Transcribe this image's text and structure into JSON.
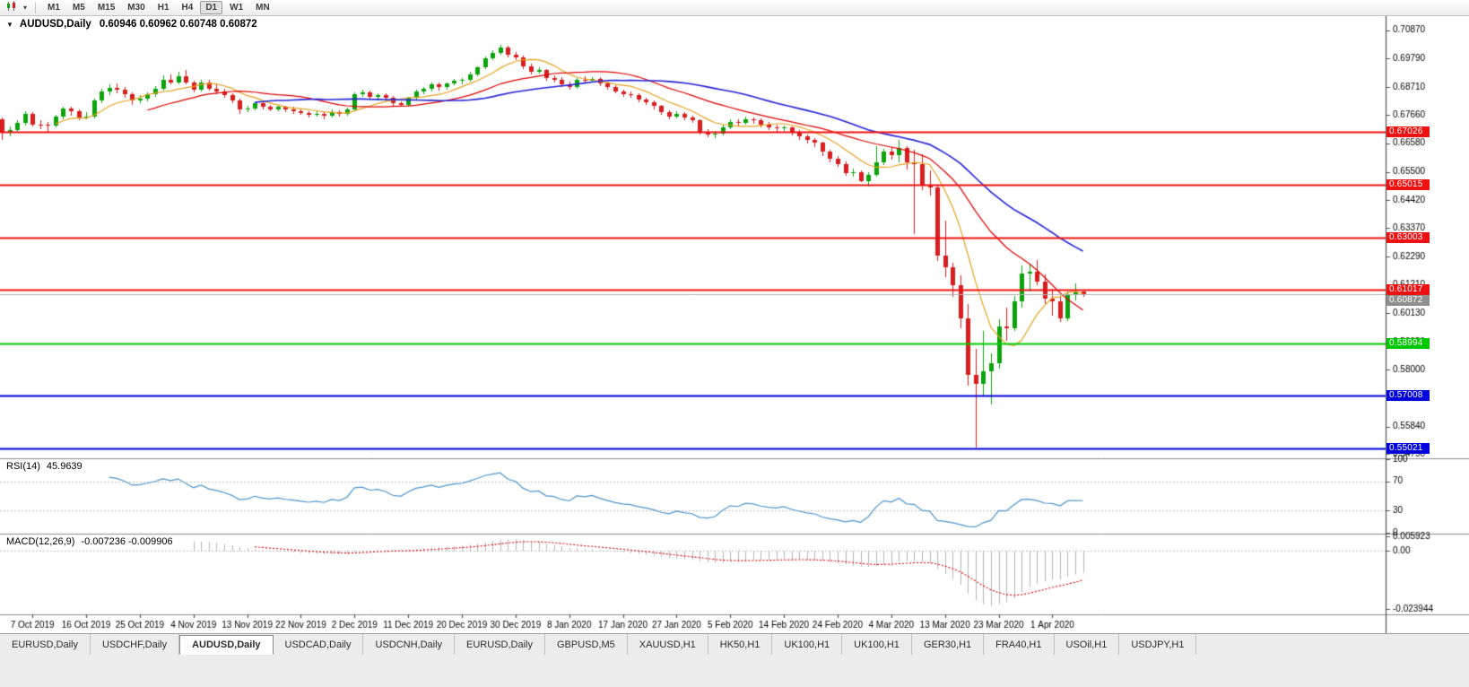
{
  "toolbar": {
    "timeframes": [
      "M1",
      "M5",
      "M15",
      "M30",
      "H1",
      "H4",
      "D1",
      "W1",
      "MN"
    ],
    "active_timeframe": "D1"
  },
  "chart_data": {
    "type": "candlestick",
    "title": "AUDUSD,Daily",
    "ohlc_text": "0.60946 0.60962 0.60748 0.60872",
    "last_ohlc": {
      "open": 0.60946,
      "high": 0.60962,
      "low": 0.60748,
      "close": 0.60872
    },
    "y_axis": {
      "max": 0.714,
      "min": 0.5467
    },
    "y_ticks": [
      "0.70870",
      "0.69790",
      "0.68710",
      "0.67660",
      "0.66580",
      "0.65500",
      "0.64420",
      "0.63370",
      "0.62290",
      "0.61210",
      "0.60130",
      "0.59050",
      "0.58000",
      "0.56920",
      "0.55840",
      "0.54790"
    ],
    "x_labels": [
      {
        "bar": 4,
        "text": "7 Oct 2019"
      },
      {
        "bar": 11,
        "text": "16 Oct 2019"
      },
      {
        "bar": 18,
        "text": "25 Oct 2019"
      },
      {
        "bar": 25,
        "text": "4 Nov 2019"
      },
      {
        "bar": 32,
        "text": "13 Nov 2019"
      },
      {
        "bar": 39,
        "text": "22 Nov 2019"
      },
      {
        "bar": 46,
        "text": "2 Dec 2019"
      },
      {
        "bar": 53,
        "text": "11 Dec 2019"
      },
      {
        "bar": 60,
        "text": "20 Dec 2019"
      },
      {
        "bar": 67,
        "text": "30 Dec 2019"
      },
      {
        "bar": 74,
        "text": "8 Jan 2020"
      },
      {
        "bar": 81,
        "text": "17 Jan 2020"
      },
      {
        "bar": 88,
        "text": "27 Jan 2020"
      },
      {
        "bar": 95,
        "text": "5 Feb 2020"
      },
      {
        "bar": 102,
        "text": "14 Feb 2020"
      },
      {
        "bar": 109,
        "text": "24 Feb 2020"
      },
      {
        "bar": 116,
        "text": "4 Mar 2020"
      },
      {
        "bar": 123,
        "text": "13 Mar 2020"
      },
      {
        "bar": 130,
        "text": "23 Mar 2020"
      },
      {
        "bar": 137,
        "text": "1 Apr 2020"
      }
    ],
    "colors": {
      "bull": "#0ca30c",
      "bear": "#d81e1e",
      "bid_line": "#b0b0b0",
      "bid_badge": "#8f8f8f"
    },
    "moving_averages": [
      {
        "period": 8,
        "color": "#e8a222"
      },
      {
        "period": 20,
        "color": "#e00000"
      },
      {
        "period": 34,
        "color": "#2222d8"
      }
    ],
    "levels": [
      {
        "price": 0.67026,
        "label": "0.67026",
        "color": "#ee1111"
      },
      {
        "price": 0.65015,
        "label": "0.65015",
        "color": "#ee1111"
      },
      {
        "price": 0.63003,
        "label": "0.63003",
        "color": "#ee1111"
      },
      {
        "price": 0.61017,
        "label": "0.61017",
        "color": "#ee1111"
      },
      {
        "price": 0.58994,
        "label": "0.58994",
        "color": "#00c800"
      },
      {
        "price": 0.57008,
        "label": "0.57008",
        "color": "#0000dd"
      },
      {
        "price": 0.55021,
        "label": "0.55021",
        "color": "#0000dd"
      }
    ],
    "bid": {
      "price": 0.60872,
      "label": "0.60872"
    },
    "rsi": {
      "name": "RSI(14)",
      "value": "45.9639",
      "period": 14,
      "color": "#4f94cd",
      "scale": [
        "100",
        "70",
        "30",
        "0"
      ],
      "guides": [
        70,
        30
      ]
    },
    "macd": {
      "name": "MACD(12,26,9)",
      "values": "-0.007236 -0.009906",
      "fast": 12,
      "slow": 26,
      "signal": 9,
      "hist_color": "#b5b5b5",
      "signal_color": "#e00000",
      "range": {
        "max": 0.0068,
        "min": -0.0258
      },
      "scale": [
        {
          "v": 0.005923,
          "label": "0.005923"
        },
        {
          "v": 0,
          "label": "0.00"
        },
        {
          "v": -0.023944,
          "label": "-0.023944"
        }
      ]
    },
    "candles": [
      [
        0.6749,
        0.6755,
        0.667,
        0.67
      ],
      [
        0.67,
        0.6722,
        0.6685,
        0.6707
      ],
      [
        0.6707,
        0.6745,
        0.67,
        0.6736
      ],
      [
        0.6736,
        0.678,
        0.6725,
        0.677
      ],
      [
        0.677,
        0.6775,
        0.6722,
        0.673
      ],
      [
        0.673,
        0.6745,
        0.671,
        0.6727
      ],
      [
        0.6727,
        0.6738,
        0.67,
        0.6725
      ],
      [
        0.6725,
        0.6765,
        0.6718,
        0.6758
      ],
      [
        0.6758,
        0.6795,
        0.675,
        0.679
      ],
      [
        0.679,
        0.6795,
        0.6762,
        0.678
      ],
      [
        0.678,
        0.6785,
        0.6745,
        0.6755
      ],
      [
        0.6755,
        0.6775,
        0.6748,
        0.6758
      ],
      [
        0.6758,
        0.6828,
        0.6752,
        0.6822
      ],
      [
        0.6822,
        0.6865,
        0.681,
        0.6855
      ],
      [
        0.6855,
        0.688,
        0.684,
        0.6867
      ],
      [
        0.6867,
        0.6885,
        0.6848,
        0.686
      ],
      [
        0.686,
        0.6872,
        0.683,
        0.6845
      ],
      [
        0.6845,
        0.685,
        0.6805,
        0.6821
      ],
      [
        0.6821,
        0.684,
        0.681,
        0.6827
      ],
      [
        0.6827,
        0.685,
        0.6818,
        0.6843
      ],
      [
        0.6843,
        0.6875,
        0.6835,
        0.6865
      ],
      [
        0.6865,
        0.6915,
        0.6858,
        0.69
      ],
      [
        0.69,
        0.692,
        0.688,
        0.689
      ],
      [
        0.689,
        0.693,
        0.6882,
        0.6913
      ],
      [
        0.6913,
        0.6935,
        0.688,
        0.6888
      ],
      [
        0.6888,
        0.6895,
        0.685,
        0.6862
      ],
      [
        0.6862,
        0.69,
        0.6855,
        0.689
      ],
      [
        0.689,
        0.6898,
        0.6858,
        0.6866
      ],
      [
        0.6866,
        0.688,
        0.6845,
        0.6855
      ],
      [
        0.6855,
        0.6865,
        0.683,
        0.684
      ],
      [
        0.684,
        0.6848,
        0.681,
        0.682
      ],
      [
        0.682,
        0.6826,
        0.677,
        0.6785
      ],
      [
        0.6785,
        0.68,
        0.6775,
        0.679
      ],
      [
        0.679,
        0.6815,
        0.6782,
        0.681
      ],
      [
        0.681,
        0.6818,
        0.6788,
        0.6795
      ],
      [
        0.6795,
        0.6805,
        0.6778,
        0.6788
      ],
      [
        0.6788,
        0.6802,
        0.678,
        0.6795
      ],
      [
        0.6795,
        0.68,
        0.6775,
        0.6785
      ],
      [
        0.6785,
        0.6795,
        0.677,
        0.678
      ],
      [
        0.678,
        0.6788,
        0.6765,
        0.6772
      ],
      [
        0.6772,
        0.678,
        0.6755,
        0.6765
      ],
      [
        0.6765,
        0.6778,
        0.6758,
        0.677
      ],
      [
        0.677,
        0.6775,
        0.675,
        0.6762
      ],
      [
        0.6762,
        0.6785,
        0.6755,
        0.6776
      ],
      [
        0.6776,
        0.6782,
        0.6758,
        0.677
      ],
      [
        0.677,
        0.6793,
        0.6762,
        0.6785
      ],
      [
        0.6785,
        0.685,
        0.678,
        0.6845
      ],
      [
        0.6845,
        0.6862,
        0.6835,
        0.685
      ],
      [
        0.685,
        0.6858,
        0.6825,
        0.6835
      ],
      [
        0.6835,
        0.6848,
        0.6822,
        0.684
      ],
      [
        0.684,
        0.6846,
        0.6818,
        0.683
      ],
      [
        0.683,
        0.6838,
        0.68,
        0.681
      ],
      [
        0.681,
        0.6818,
        0.6795,
        0.6805
      ],
      [
        0.6805,
        0.6835,
        0.6798,
        0.683
      ],
      [
        0.683,
        0.686,
        0.6822,
        0.6855
      ],
      [
        0.6855,
        0.6872,
        0.6845,
        0.6865
      ],
      [
        0.6865,
        0.689,
        0.6855,
        0.688
      ],
      [
        0.688,
        0.6888,
        0.6858,
        0.687
      ],
      [
        0.687,
        0.689,
        0.6862,
        0.6885
      ],
      [
        0.6885,
        0.6902,
        0.6878,
        0.6895
      ],
      [
        0.6895,
        0.6905,
        0.6882,
        0.69
      ],
      [
        0.69,
        0.6928,
        0.6892,
        0.692
      ],
      [
        0.692,
        0.695,
        0.6912,
        0.6945
      ],
      [
        0.6945,
        0.6988,
        0.6938,
        0.698
      ],
      [
        0.698,
        0.701,
        0.6972,
        0.7
      ],
      [
        0.7,
        0.7032,
        0.6995,
        0.7021
      ],
      [
        0.7021,
        0.7028,
        0.6985,
        0.6995
      ],
      [
        0.6995,
        0.7005,
        0.6975,
        0.6985
      ],
      [
        0.6985,
        0.6992,
        0.6938,
        0.695
      ],
      [
        0.695,
        0.696,
        0.692,
        0.693
      ],
      [
        0.693,
        0.6945,
        0.6922,
        0.6935
      ],
      [
        0.6935,
        0.694,
        0.6895,
        0.6905
      ],
      [
        0.6905,
        0.6915,
        0.6888,
        0.69
      ],
      [
        0.69,
        0.691,
        0.687,
        0.688
      ],
      [
        0.688,
        0.6892,
        0.6862,
        0.687
      ],
      [
        0.687,
        0.6905,
        0.6865,
        0.69
      ],
      [
        0.69,
        0.6912,
        0.6885,
        0.6895
      ],
      [
        0.6895,
        0.691,
        0.6888,
        0.6903
      ],
      [
        0.6903,
        0.6908,
        0.6875,
        0.6885
      ],
      [
        0.6885,
        0.6892,
        0.6862,
        0.687
      ],
      [
        0.687,
        0.6878,
        0.6848,
        0.6855
      ],
      [
        0.6855,
        0.6862,
        0.6835,
        0.6845
      ],
      [
        0.6845,
        0.6855,
        0.683,
        0.684
      ],
      [
        0.684,
        0.6846,
        0.6815,
        0.6825
      ],
      [
        0.6825,
        0.6832,
        0.6805,
        0.6815
      ],
      [
        0.6815,
        0.682,
        0.6788,
        0.68
      ],
      [
        0.68,
        0.6805,
        0.6765,
        0.6775
      ],
      [
        0.6775,
        0.6782,
        0.675,
        0.676
      ],
      [
        0.676,
        0.6778,
        0.6752,
        0.677
      ],
      [
        0.677,
        0.6775,
        0.6745,
        0.6755
      ],
      [
        0.6755,
        0.6762,
        0.6735,
        0.6745
      ],
      [
        0.6745,
        0.675,
        0.669,
        0.67
      ],
      [
        0.67,
        0.6712,
        0.6682,
        0.669
      ],
      [
        0.669,
        0.6705,
        0.6678,
        0.6695
      ],
      [
        0.6695,
        0.6728,
        0.6688,
        0.672
      ],
      [
        0.672,
        0.6748,
        0.6712,
        0.674
      ],
      [
        0.674,
        0.675,
        0.6722,
        0.6735
      ],
      [
        0.6735,
        0.6758,
        0.6728,
        0.675
      ],
      [
        0.675,
        0.6756,
        0.6732,
        0.6745
      ],
      [
        0.6745,
        0.6752,
        0.672,
        0.673
      ],
      [
        0.673,
        0.6738,
        0.6708,
        0.672
      ],
      [
        0.672,
        0.6728,
        0.67,
        0.6715
      ],
      [
        0.6715,
        0.6725,
        0.6705,
        0.672
      ],
      [
        0.672,
        0.6722,
        0.6688,
        0.67
      ],
      [
        0.67,
        0.6708,
        0.6672,
        0.6685
      ],
      [
        0.6685,
        0.6692,
        0.6658,
        0.667
      ],
      [
        0.667,
        0.6678,
        0.6645,
        0.666
      ],
      [
        0.666,
        0.6665,
        0.661,
        0.6625
      ],
      [
        0.6625,
        0.6632,
        0.6585,
        0.66
      ],
      [
        0.66,
        0.661,
        0.6568,
        0.658
      ],
      [
        0.658,
        0.6588,
        0.6535,
        0.6545
      ],
      [
        0.6545,
        0.6562,
        0.653,
        0.655
      ],
      [
        0.655,
        0.6556,
        0.651,
        0.6515
      ],
      [
        0.6515,
        0.6548,
        0.6495,
        0.6537
      ],
      [
        0.6537,
        0.6646,
        0.653,
        0.6585
      ],
      [
        0.6585,
        0.6637,
        0.6576,
        0.6625
      ],
      [
        0.6625,
        0.6645,
        0.6595,
        0.6613
      ],
      [
        0.6613,
        0.667,
        0.6585,
        0.664
      ],
      [
        0.664,
        0.6648,
        0.656,
        0.6585
      ],
      [
        0.6585,
        0.6635,
        0.6313,
        0.658
      ],
      [
        0.658,
        0.6615,
        0.648,
        0.65
      ],
      [
        0.65,
        0.6555,
        0.646,
        0.649
      ],
      [
        0.649,
        0.6497,
        0.6213,
        0.6232
      ],
      [
        0.6232,
        0.6365,
        0.615,
        0.6187
      ],
      [
        0.6187,
        0.6205,
        0.6075,
        0.612
      ],
      [
        0.612,
        0.6157,
        0.5958,
        0.5995
      ],
      [
        0.5995,
        0.605,
        0.574,
        0.578
      ],
      [
        0.578,
        0.588,
        0.5506,
        0.5745
      ],
      [
        0.5745,
        0.5945,
        0.57,
        0.5795
      ],
      [
        0.5795,
        0.586,
        0.5668,
        0.5825
      ],
      [
        0.5825,
        0.599,
        0.5805,
        0.5965
      ],
      [
        0.5965,
        0.6035,
        0.591,
        0.5955
      ],
      [
        0.5955,
        0.608,
        0.5945,
        0.606
      ],
      [
        0.606,
        0.6195,
        0.6035,
        0.6165
      ],
      [
        0.6165,
        0.62,
        0.6095,
        0.617
      ],
      [
        0.617,
        0.6214,
        0.612,
        0.6135
      ],
      [
        0.6135,
        0.616,
        0.605,
        0.607
      ],
      [
        0.607,
        0.6105,
        0.6005,
        0.606
      ],
      [
        0.606,
        0.6075,
        0.5982,
        0.5995
      ],
      [
        0.5995,
        0.6095,
        0.5985,
        0.6085
      ],
      [
        0.6085,
        0.6125,
        0.6062,
        0.6092
      ],
      [
        0.60946,
        0.60962,
        0.60748,
        0.60872
      ]
    ]
  },
  "tabs": {
    "active_index": 2,
    "items": [
      "EURUSD,Daily",
      "USDCHF,Daily",
      "AUDUSD,Daily",
      "USDCAD,Daily",
      "USDCNH,Daily",
      "EURUSD,Daily",
      "GBPUSD,M5",
      "XAUUSD,H1",
      "HK50,H1",
      "UK100,H1",
      "UK100,H1",
      "GER30,H1",
      "FRA40,H1",
      "USOil,H1",
      "USDJPY,H1"
    ]
  }
}
